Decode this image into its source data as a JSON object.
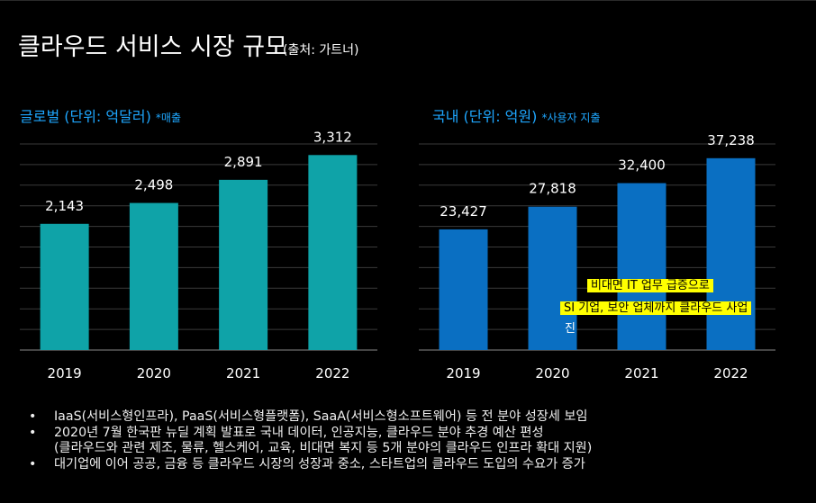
{
  "title": "클라우드 서비스 시장 규모",
  "source": "(출처: 가트너)",
  "global": {
    "heading": "글로벌 (단위: 억달러)",
    "note": "*매출"
  },
  "domestic": {
    "heading": "국내 (단위: 억원)",
    "note": "*사용자 지출"
  },
  "chart_data": [
    {
      "type": "bar",
      "title": "글로벌 (단위: 억달러)",
      "categories": [
        "2019",
        "2020",
        "2021",
        "2022"
      ],
      "values": [
        2143,
        2498,
        2891,
        3312
      ],
      "value_labels": [
        "2,143",
        "2,498",
        "2,891",
        "3,312"
      ],
      "ylim": [
        0,
        3500
      ],
      "grid": true,
      "color": "#0fa3a8"
    },
    {
      "type": "bar",
      "title": "국내 (단위: 억원)",
      "categories": [
        "2019",
        "2020",
        "2021",
        "2022"
      ],
      "values": [
        23427,
        27818,
        32400,
        37238
      ],
      "value_labels": [
        "23,427",
        "27,818",
        "32,400",
        "37,238"
      ],
      "ylim": [
        0,
        40000
      ],
      "grid": true,
      "color": "#0a6fc2"
    }
  ],
  "callouts": {
    "line1": "비대면 IT 업무 급증으로",
    "line2": "SI 기업, 보안 업체까지 클라우드 사업",
    "line3": "진"
  },
  "bullets": [
    "IaaS(서비스형인프라), PaaS(서비스형플랫폼), SaaA(서비스형소프트웨어) 등 전 분야 성장세 보임",
    "2020년 7월 한국판 뉴딜 계획 발표로 국내 데이터, 인공지능, 클라우드 분야 추경 예산 편성",
    "(클라우드와 관련 제조, 물류, 헬스케어, 교육, 비대면 복지 등 5개 분야의 클라우드 인프라 확대 지원)",
    "대기업에 이어 공공, 금융 등 클라우드 시장의 성장과 중소, 스타트업의 클라우드 도입의 수요가 증가"
  ],
  "bullet_symbol": "•"
}
